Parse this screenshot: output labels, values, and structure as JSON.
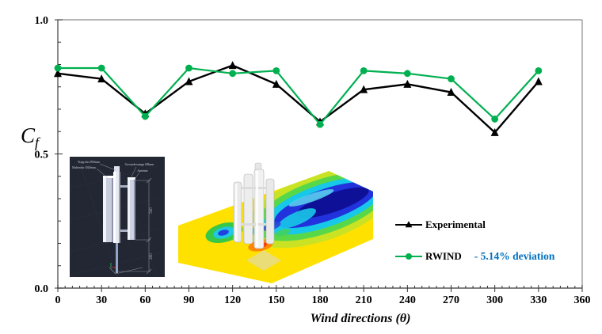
{
  "chart_data": {
    "type": "line",
    "title": "",
    "xlabel": "Wind directions (θ)",
    "ylabel": "Cf",
    "x": [
      0,
      30,
      60,
      90,
      120,
      150,
      180,
      210,
      240,
      270,
      300,
      330
    ],
    "xlim": [
      0,
      360
    ],
    "ylim": [
      0.0,
      1.0
    ],
    "x_tick_labels": [
      "0",
      "30",
      "60",
      "90",
      "120",
      "150",
      "180",
      "210",
      "240",
      "270",
      "300",
      "330",
      "360"
    ],
    "y_tick_labels": [
      "0.0",
      "0.5",
      "1.0"
    ],
    "y_tick_values": [
      0.0,
      0.5,
      1.0
    ],
    "grid": false,
    "legend_position": "right-middle",
    "series": [
      {
        "name": "Experimental",
        "marker": "triangle",
        "color": "#000000",
        "values": [
          0.8,
          0.78,
          0.65,
          0.77,
          0.83,
          0.76,
          0.62,
          0.74,
          0.76,
          0.73,
          0.58,
          0.77
        ]
      },
      {
        "name": "RWIND",
        "marker": "circle",
        "color": "#00b050",
        "values": [
          0.82,
          0.82,
          0.64,
          0.82,
          0.8,
          0.81,
          0.61,
          0.81,
          0.8,
          0.78,
          0.63,
          0.81
        ]
      }
    ]
  },
  "y_axis": {
    "label_main": "C",
    "label_sub": "f"
  },
  "x_axis": {
    "title": "Wind directions (θ)"
  },
  "legend": {
    "experimental_label": "Experimental",
    "rwind_label": "RWIND",
    "deviation_note": "- 5.14% deviation",
    "deviation_color": "#0070c0"
  },
  "inset_cad": {
    "background": "#222733",
    "labels": [
      "Tragrohr Ø50mm",
      "Halterohr Ø20mm",
      "Gewindestange Ø8mm",
      "Antenne"
    ],
    "dimensions": {
      "height_upper": "500",
      "height_lower": "200"
    }
  },
  "inset_cfd": {
    "name": "cfd-velocity-contour",
    "contour_colors": [
      "#ffe100",
      "#7ed321",
      "#18c8e8",
      "#2233dd",
      "#0a0a8c",
      "#ff8800",
      "#ff3300"
    ]
  }
}
